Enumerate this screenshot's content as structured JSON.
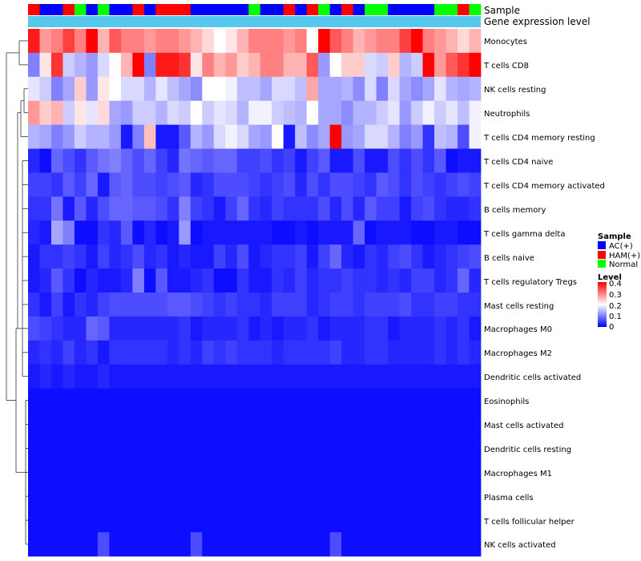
{
  "chart_data": {
    "type": "heatmap",
    "annotation_labels": [
      "Sample",
      "Gene expression level"
    ],
    "rows": [
      "Monocytes",
      "T cells CD8",
      "NK cells resting",
      "Neutrophils",
      "T cells CD4 memory resting",
      "T cells CD4 naive",
      "T cells CD4 memory activated",
      "B cells memory",
      "T cells gamma delta",
      "B cells naive",
      "T cells regulatory  Tregs",
      "Mast cells resting",
      "Macrophages M0",
      "Macrophages M2",
      "Dendritic cells activated",
      "Eosinophils",
      "Mast cells activated",
      "Dendritic cells resting",
      "Macrophages M1",
      "Plasma cells",
      "T cells follicular helper",
      "NK cells activated"
    ],
    "column_groups": [
      "H",
      "A",
      "A",
      "H",
      "N",
      "A",
      "N",
      "A",
      "A",
      "H",
      "A",
      "H",
      "H",
      "H",
      "A",
      "A",
      "A",
      "A",
      "A",
      "N",
      "A",
      "A",
      "H",
      "A",
      "H",
      "N",
      "A",
      "H",
      "A",
      "N",
      "N",
      "A",
      "A",
      "A",
      "A",
      "N",
      "N",
      "H",
      "N"
    ],
    "group_names": {
      "A": "AC(+)",
      "H": "HAM(+)",
      "N": "Normal"
    },
    "group_colors": {
      "A": "#0000FF",
      "H": "#FF0000",
      "N": "#00FF00"
    },
    "gene_expression_color": "#56C8EE",
    "color_scale": {
      "low": "#0000FF",
      "mid": "#FFFFFF",
      "high": "#FF0000",
      "min": 0,
      "mid_value": 0.2,
      "max": 0.4
    },
    "legend": {
      "sample_title": "Sample",
      "sample_items": [
        "AC(+)",
        "HAM(+)",
        "Normal"
      ],
      "level_title": "Level",
      "level_ticks": [
        "0.4",
        "0.3",
        "0.2",
        "0.1",
        "0"
      ]
    },
    "values": [
      [
        0.38,
        0.28,
        0.3,
        0.35,
        0.3,
        0.4,
        0.26,
        0.33,
        0.3,
        0.3,
        0.28,
        0.3,
        0.3,
        0.28,
        0.26,
        0.23,
        0.2,
        0.22,
        0.26,
        0.3,
        0.3,
        0.3,
        0.28,
        0.3,
        0.2,
        0.4,
        0.33,
        0.3,
        0.26,
        0.28,
        0.3,
        0.3,
        0.35,
        0.4,
        0.3,
        0.28,
        0.26,
        0.23,
        0.26
      ],
      [
        0.1,
        0.22,
        0.36,
        0.16,
        0.14,
        0.12,
        0.17,
        0.2,
        0.26,
        0.4,
        0.1,
        0.38,
        0.38,
        0.36,
        0.22,
        0.3,
        0.26,
        0.28,
        0.24,
        0.26,
        0.3,
        0.3,
        0.26,
        0.26,
        0.33,
        0.12,
        0.2,
        0.24,
        0.24,
        0.17,
        0.16,
        0.24,
        0.14,
        0.16,
        0.4,
        0.28,
        0.33,
        0.36,
        0.4
      ],
      [
        0.18,
        0.16,
        0.1,
        0.13,
        0.24,
        0.12,
        0.22,
        0.2,
        0.17,
        0.17,
        0.14,
        0.18,
        0.15,
        0.13,
        0.11,
        0.2,
        0.2,
        0.19,
        0.15,
        0.15,
        0.13,
        0.17,
        0.17,
        0.15,
        0.27,
        0.13,
        0.13,
        0.14,
        0.11,
        0.17,
        0.1,
        0.17,
        0.13,
        0.11,
        0.13,
        0.18,
        0.14,
        0.13,
        0.14
      ],
      [
        0.28,
        0.24,
        0.26,
        0.16,
        0.22,
        0.18,
        0.23,
        0.13,
        0.12,
        0.16,
        0.16,
        0.14,
        0.17,
        0.16,
        0.2,
        0.16,
        0.18,
        0.17,
        0.14,
        0.19,
        0.19,
        0.16,
        0.15,
        0.14,
        0.2,
        0.13,
        0.13,
        0.11,
        0.14,
        0.14,
        0.16,
        0.18,
        0.12,
        0.16,
        0.19,
        0.16,
        0.18,
        0.15,
        0.19
      ],
      [
        0.14,
        0.13,
        0.1,
        0.12,
        0.16,
        0.14,
        0.14,
        0.12,
        0.02,
        0.1,
        0.25,
        0.02,
        0.02,
        0.07,
        0.14,
        0.12,
        0.17,
        0.19,
        0.17,
        0.13,
        0.12,
        0.2,
        0.02,
        0.15,
        0.11,
        0.13,
        0.42,
        0.12,
        0.13,
        0.17,
        0.17,
        0.14,
        0.1,
        0.12,
        0.04,
        0.15,
        0.14,
        0.06,
        0.19
      ],
      [
        0.03,
        0.01,
        0.08,
        0.06,
        0.04,
        0.07,
        0.09,
        0.1,
        0.08,
        0.06,
        0.08,
        0.05,
        0.03,
        0.09,
        0.08,
        0.07,
        0.08,
        0.08,
        0.05,
        0.05,
        0.06,
        0.04,
        0.05,
        0.02,
        0.05,
        0.07,
        0.02,
        0.02,
        0.06,
        0.02,
        0.02,
        0.06,
        0.04,
        0.06,
        0.04,
        0.07,
        0.01,
        0.02,
        0.02
      ],
      [
        0.05,
        0.05,
        0.04,
        0.07,
        0.05,
        0.08,
        0.02,
        0.07,
        0.08,
        0.06,
        0.06,
        0.05,
        0.06,
        0.07,
        0.03,
        0.04,
        0.06,
        0.06,
        0.06,
        0.05,
        0.04,
        0.05,
        0.06,
        0.03,
        0.06,
        0.04,
        0.06,
        0.06,
        0.05,
        0.04,
        0.07,
        0.06,
        0.04,
        0.06,
        0.05,
        0.04,
        0.05,
        0.06,
        0.05
      ],
      [
        0.04,
        0.04,
        0.09,
        0.02,
        0.07,
        0.03,
        0.06,
        0.08,
        0.08,
        0.07,
        0.07,
        0.06,
        0.04,
        0.1,
        0.05,
        0.04,
        0.02,
        0.05,
        0.08,
        0.04,
        0.03,
        0.05,
        0.04,
        0.04,
        0.04,
        0.06,
        0.03,
        0.06,
        0.03,
        0.07,
        0.05,
        0.05,
        0.02,
        0.05,
        0.06,
        0.04,
        0.03,
        0.03,
        0.04
      ],
      [
        0.03,
        0.02,
        0.13,
        0.1,
        0.01,
        0.01,
        0.04,
        0.03,
        0.07,
        0.01,
        0.03,
        0.01,
        0.02,
        0.12,
        0.01,
        0.02,
        0.02,
        0.02,
        0.02,
        0.02,
        0.02,
        0.01,
        0.01,
        0.02,
        0.01,
        0.02,
        0.02,
        0.02,
        0.08,
        0.01,
        0.02,
        0.02,
        0.02,
        0.01,
        0.01,
        0.02,
        0.02,
        0.01,
        0.01
      ],
      [
        0.02,
        0.04,
        0.04,
        0.05,
        0.04,
        0.02,
        0.05,
        0.03,
        0.04,
        0.06,
        0.03,
        0.04,
        0.02,
        0.03,
        0.02,
        0.02,
        0.05,
        0.03,
        0.06,
        0.02,
        0.03,
        0.04,
        0.04,
        0.05,
        0.02,
        0.05,
        0.08,
        0.03,
        0.02,
        0.04,
        0.03,
        0.05,
        0.06,
        0.04,
        0.02,
        0.03,
        0.04,
        0.05,
        0.06
      ],
      [
        0.02,
        0.03,
        0.07,
        0.04,
        0.01,
        0.03,
        0.02,
        0.02,
        0.03,
        0.1,
        0.01,
        0.07,
        0.02,
        0.02,
        0.03,
        0.04,
        0.01,
        0.01,
        0.04,
        0.02,
        0.02,
        0.04,
        0.03,
        0.05,
        0.03,
        0.04,
        0.04,
        0.05,
        0.04,
        0.04,
        0.03,
        0.04,
        0.03,
        0.05,
        0.05,
        0.03,
        0.04,
        0.08,
        0.03
      ],
      [
        0.04,
        0.02,
        0.05,
        0.02,
        0.04,
        0.03,
        0.05,
        0.06,
        0.06,
        0.06,
        0.06,
        0.06,
        0.07,
        0.07,
        0.06,
        0.05,
        0.04,
        0.05,
        0.04,
        0.04,
        0.03,
        0.05,
        0.05,
        0.05,
        0.03,
        0.04,
        0.05,
        0.05,
        0.04,
        0.05,
        0.05,
        0.05,
        0.06,
        0.04,
        0.04,
        0.05,
        0.05,
        0.04,
        0.04
      ],
      [
        0.06,
        0.05,
        0.04,
        0.03,
        0.03,
        0.08,
        0.07,
        0.03,
        0.03,
        0.03,
        0.03,
        0.03,
        0.03,
        0.04,
        0.02,
        0.03,
        0.03,
        0.03,
        0.04,
        0.02,
        0.03,
        0.02,
        0.03,
        0.03,
        0.04,
        0.02,
        0.03,
        0.03,
        0.03,
        0.04,
        0.04,
        0.02,
        0.03,
        0.03,
        0.03,
        0.04,
        0.03,
        0.04,
        0.02
      ],
      [
        0.03,
        0.04,
        0.03,
        0.05,
        0.03,
        0.04,
        0.02,
        0.04,
        0.04,
        0.04,
        0.04,
        0.04,
        0.03,
        0.04,
        0.03,
        0.05,
        0.04,
        0.05,
        0.04,
        0.04,
        0.04,
        0.03,
        0.04,
        0.04,
        0.04,
        0.04,
        0.05,
        0.03,
        0.03,
        0.04,
        0.04,
        0.03,
        0.03,
        0.03,
        0.03,
        0.04,
        0.03,
        0.04,
        0.03
      ],
      [
        0.02,
        0.03,
        0.02,
        0.03,
        0.02,
        0.02,
        0.03,
        0.02,
        0.02,
        0.02,
        0.02,
        0.02,
        0.02,
        0.02,
        0.02,
        0.02,
        0.02,
        0.02,
        0.02,
        0.02,
        0.02,
        0.02,
        0.02,
        0.02,
        0.02,
        0.02,
        0.02,
        0.02,
        0.02,
        0.02,
        0.02,
        0.02,
        0.02,
        0.02,
        0.02,
        0.02,
        0.02,
        0.02,
        0.02
      ],
      [
        0.01,
        0.01,
        0.01,
        0.01,
        0.01,
        0.01,
        0.01,
        0.01,
        0.01,
        0.01,
        0.01,
        0.01,
        0.01,
        0.01,
        0.01,
        0.01,
        0.01,
        0.01,
        0.01,
        0.01,
        0.01,
        0.01,
        0.01,
        0.01,
        0.01,
        0.01,
        0.01,
        0.01,
        0.01,
        0.01,
        0.01,
        0.01,
        0.01,
        0.01,
        0.01,
        0.01,
        0.01,
        0.01,
        0.01
      ],
      [
        0.01,
        0.01,
        0.01,
        0.01,
        0.01,
        0.01,
        0.01,
        0.01,
        0.01,
        0.01,
        0.01,
        0.01,
        0.01,
        0.01,
        0.01,
        0.01,
        0.01,
        0.01,
        0.01,
        0.01,
        0.01,
        0.01,
        0.01,
        0.01,
        0.01,
        0.01,
        0.01,
        0.01,
        0.01,
        0.01,
        0.01,
        0.01,
        0.01,
        0.01,
        0.01,
        0.01,
        0.01,
        0.01,
        0.01
      ],
      [
        0.01,
        0.01,
        0.01,
        0.01,
        0.01,
        0.01,
        0.01,
        0.01,
        0.01,
        0.01,
        0.01,
        0.01,
        0.01,
        0.01,
        0.01,
        0.01,
        0.01,
        0.01,
        0.01,
        0.01,
        0.01,
        0.01,
        0.01,
        0.01,
        0.01,
        0.01,
        0.01,
        0.01,
        0.01,
        0.01,
        0.01,
        0.01,
        0.01,
        0.01,
        0.01,
        0.01,
        0.01,
        0.01,
        0.01
      ],
      [
        0.01,
        0.01,
        0.01,
        0.01,
        0.01,
        0.01,
        0.01,
        0.01,
        0.01,
        0.01,
        0.01,
        0.01,
        0.01,
        0.01,
        0.01,
        0.01,
        0.01,
        0.01,
        0.01,
        0.01,
        0.01,
        0.01,
        0.01,
        0.01,
        0.01,
        0.01,
        0.01,
        0.01,
        0.01,
        0.01,
        0.01,
        0.01,
        0.01,
        0.01,
        0.01,
        0.01,
        0.01,
        0.01,
        0.01
      ],
      [
        0.01,
        0.01,
        0.01,
        0.01,
        0.01,
        0.01,
        0.01,
        0.01,
        0.01,
        0.01,
        0.01,
        0.01,
        0.01,
        0.01,
        0.01,
        0.01,
        0.01,
        0.01,
        0.01,
        0.01,
        0.01,
        0.01,
        0.01,
        0.01,
        0.01,
        0.01,
        0.01,
        0.01,
        0.01,
        0.01,
        0.01,
        0.01,
        0.01,
        0.01,
        0.01,
        0.01,
        0.01,
        0.01,
        0.01
      ],
      [
        0.01,
        0.01,
        0.01,
        0.01,
        0.01,
        0.01,
        0.01,
        0.01,
        0.01,
        0.01,
        0.01,
        0.01,
        0.01,
        0.01,
        0.01,
        0.01,
        0.01,
        0.01,
        0.01,
        0.01,
        0.01,
        0.01,
        0.01,
        0.01,
        0.01,
        0.01,
        0.01,
        0.01,
        0.01,
        0.01,
        0.01,
        0.01,
        0.01,
        0.01,
        0.01,
        0.01,
        0.01,
        0.01,
        0.01
      ],
      [
        0.01,
        0.01,
        0.01,
        0.01,
        0.01,
        0.01,
        0.06,
        0.01,
        0.01,
        0.01,
        0.01,
        0.01,
        0.01,
        0.01,
        0.06,
        0.01,
        0.01,
        0.01,
        0.01,
        0.01,
        0.01,
        0.01,
        0.01,
        0.01,
        0.01,
        0.01,
        0.06,
        0.01,
        0.01,
        0.01,
        0.01,
        0.01,
        0.01,
        0.01,
        0.01,
        0.01,
        0.01,
        0.01,
        0.01
      ]
    ]
  }
}
